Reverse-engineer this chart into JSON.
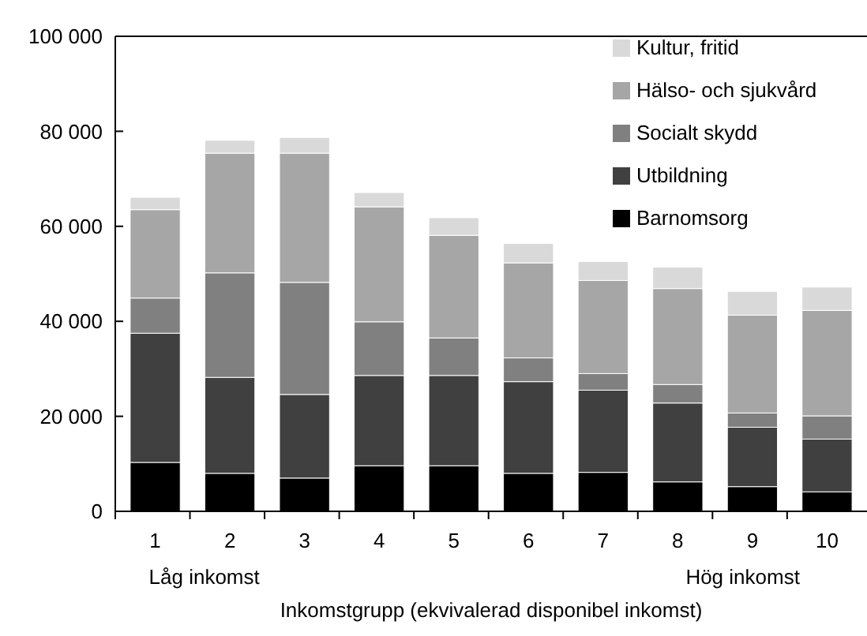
{
  "chart_data": {
    "type": "bar",
    "stacked": true,
    "xlabel": "Inkomstgrupp (ekvivalerad disponibel inkomst)",
    "categories": [
      "1",
      "2",
      "3",
      "4",
      "5",
      "6",
      "7",
      "8",
      "9",
      "10"
    ],
    "series": [
      {
        "name": "Barnomsorg",
        "color": "#000000",
        "values": [
          10300,
          8000,
          7000,
          9600,
          9600,
          8000,
          8200,
          6200,
          5200,
          4100
        ]
      },
      {
        "name": "Utbildning",
        "color": "#404040",
        "values": [
          27200,
          20200,
          17600,
          19000,
          19000,
          19300,
          17300,
          16600,
          12500,
          11100
        ]
      },
      {
        "name": "Socialt skydd",
        "color": "#808080",
        "values": [
          7400,
          22000,
          23600,
          11300,
          7900,
          5000,
          3500,
          3900,
          3000,
          4900
        ]
      },
      {
        "name": "Hälso- och sjukvård",
        "color": "#a6a6a6",
        "values": [
          18600,
          25200,
          27200,
          24200,
          21600,
          20000,
          19600,
          20200,
          20600,
          22200
        ]
      },
      {
        "name": "Kultur, fritid",
        "color": "#d9d9d9",
        "values": [
          2600,
          2700,
          3300,
          3000,
          3700,
          4100,
          4000,
          4500,
          5000,
          4900
        ]
      }
    ],
    "ylim": [
      0,
      100000
    ],
    "yticks": [
      {
        "value": 0,
        "label": "0"
      },
      {
        "value": 20000,
        "label": "20 000"
      },
      {
        "value": 40000,
        "label": "40 000"
      },
      {
        "value": 60000,
        "label": "60 000"
      },
      {
        "value": 80000,
        "label": "80 000"
      },
      {
        "value": 100000,
        "label": "100 000"
      }
    ],
    "annotations": [
      "Låg inkomst",
      "Hög inkomst"
    ],
    "legend": "top right",
    "grid": false
  }
}
